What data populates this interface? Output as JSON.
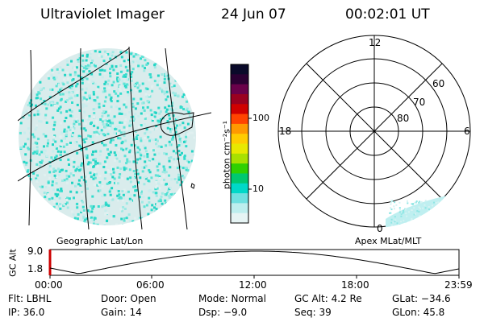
{
  "header": {
    "instrument": "Ultraviolet Imager",
    "date": "24 Jun 07",
    "time": "00:02:01 UT"
  },
  "colorbar": {
    "unit_label": "photon cm⁻²s⁻¹",
    "ticks": [
      "100",
      "10"
    ],
    "colors": [
      "#0a0a2a",
      "#2b0033",
      "#6a004a",
      "#9a0020",
      "#d00000",
      "#ff4400",
      "#ff9900",
      "#ffcc00",
      "#e8e800",
      "#a8e000",
      "#30d000",
      "#00c870",
      "#00d8c8",
      "#6fe0e0",
      "#bdeeee",
      "#e6f4f4"
    ]
  },
  "left_panel": {
    "caption": "Geographic Lat/Lon",
    "point_color": "#33dccd"
  },
  "right_panel": {
    "caption": "Apex MLat/MLT",
    "mlt_labels": {
      "top": "12",
      "left": "18",
      "right": "6",
      "bottom": "0"
    },
    "lat_labels": [
      "60",
      "70",
      "80"
    ]
  },
  "altitude_plot": {
    "axis_label": "GC Alt",
    "y_ticks": [
      "9.0",
      "1.8"
    ],
    "x_ticks": [
      "00:00",
      "06:00",
      "12:00",
      "18:00",
      "23:59"
    ]
  },
  "info": {
    "filter": "Flt: LBHL",
    "door": "Door: Open",
    "mode": "Mode: Normal",
    "gc_alt": "GC Alt: 4.2 Re",
    "glat": "GLat: −34.6",
    "ip": "IP: 36.0",
    "gain": "Gain: 14",
    "dsp": "Dsp:    −9.0",
    "seq": "Seq: 39",
    "glon": "GLon:  45.8"
  }
}
